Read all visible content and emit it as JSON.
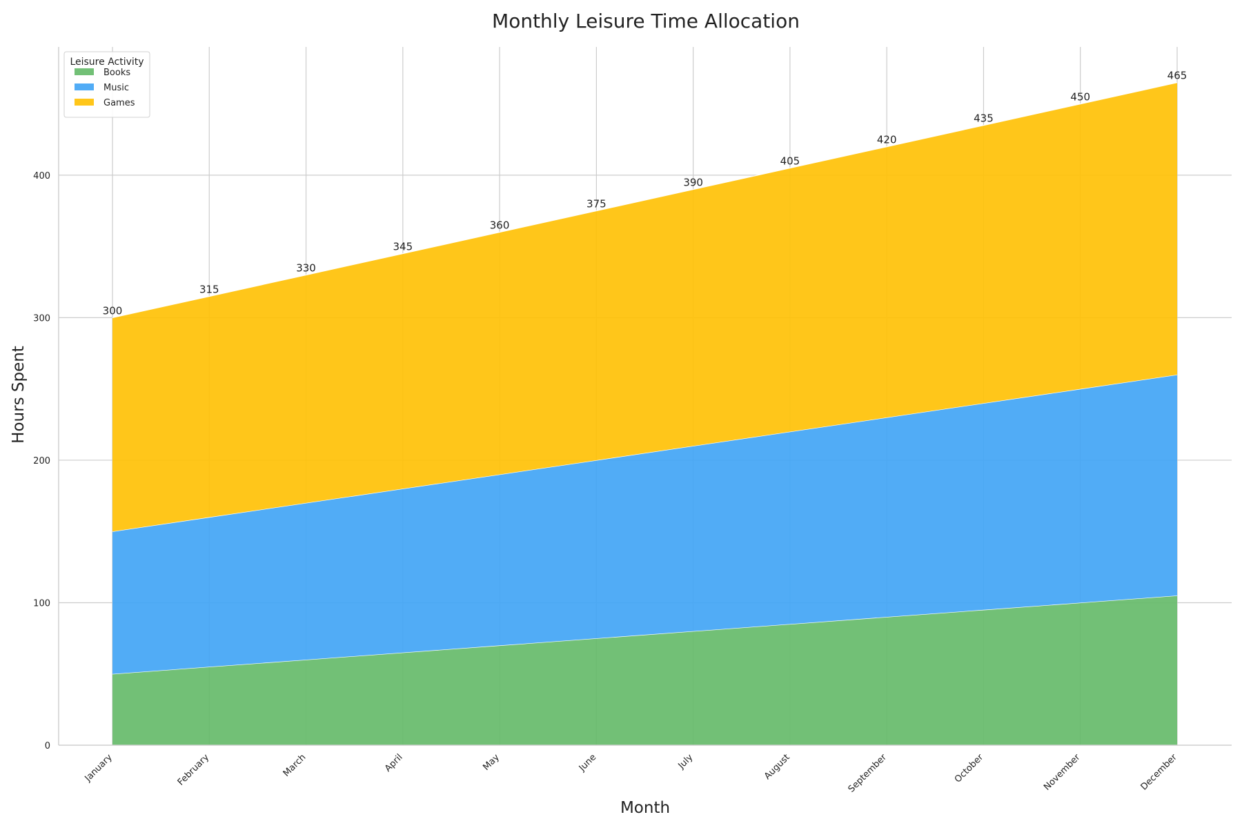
{
  "chart_data": {
    "type": "area",
    "stacked": true,
    "title": "Monthly Leisure Time Allocation",
    "xlabel": "Month",
    "ylabel": "Hours Spent",
    "categories": [
      "January",
      "February",
      "March",
      "April",
      "May",
      "June",
      "July",
      "August",
      "September",
      "October",
      "November",
      "December"
    ],
    "series": [
      {
        "name": "Books",
        "color": "#66bb6a",
        "values": [
          50,
          55,
          60,
          65,
          70,
          75,
          80,
          85,
          90,
          95,
          100,
          105
        ]
      },
      {
        "name": "Music",
        "color": "#42a5f5",
        "values": [
          100,
          105,
          110,
          115,
          120,
          125,
          130,
          135,
          140,
          145,
          150,
          155
        ]
      },
      {
        "name": "Games",
        "color": "#ffc107",
        "values": [
          150,
          155,
          160,
          165,
          170,
          175,
          180,
          185,
          190,
          195,
          200,
          205
        ]
      }
    ],
    "totals": [
      300,
      315,
      330,
      345,
      360,
      375,
      390,
      405,
      420,
      435,
      450,
      465
    ],
    "ylim": [
      0,
      490
    ],
    "yticks": [
      0,
      100,
      200,
      300,
      400
    ],
    "grid": true,
    "legend": {
      "title": "Leisure Activity",
      "position": "top-left"
    }
  }
}
